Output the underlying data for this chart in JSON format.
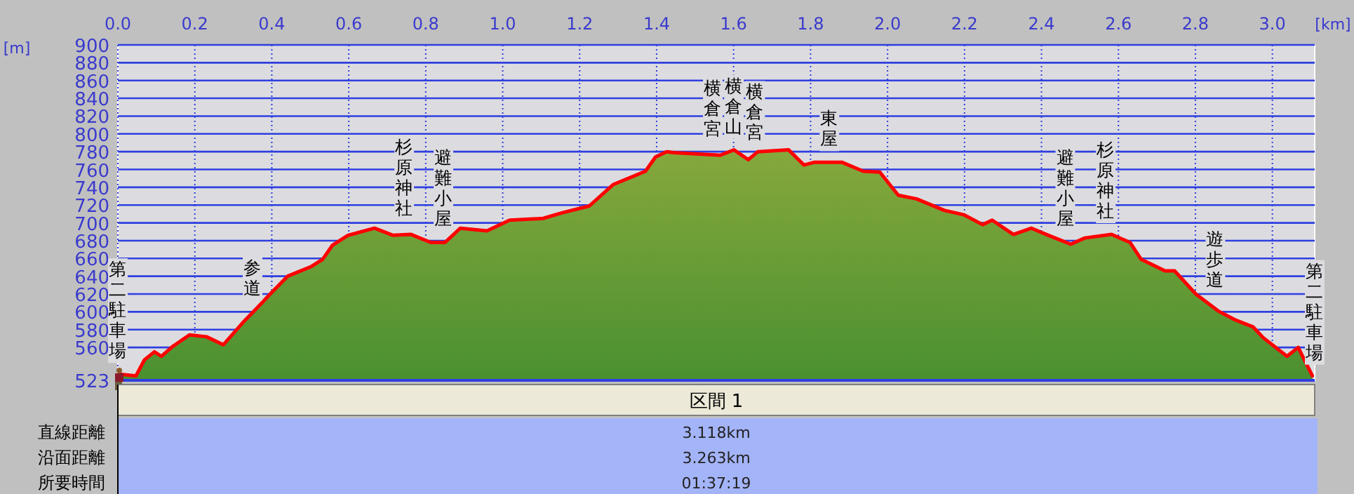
{
  "chart_data": [
    {
      "type": "area",
      "xlabel": "[km]",
      "ylabel": "[m]",
      "xlim": [
        0,
        3.11
      ],
      "ylim": [
        523,
        900
      ],
      "xticks": [
        {
          "value": 0,
          "label": "0.0"
        },
        {
          "value": 0.2,
          "label": "0.2"
        },
        {
          "value": 0.4,
          "label": "0.4"
        },
        {
          "value": 0.6,
          "label": "0.6"
        },
        {
          "value": 0.8,
          "label": "0.8"
        },
        {
          "value": 1,
          "label": "1.0"
        },
        {
          "value": 1.2,
          "label": "1.2"
        },
        {
          "value": 1.4,
          "label": "1.4"
        },
        {
          "value": 1.6,
          "label": "1.6"
        },
        {
          "value": 1.8,
          "label": "1.8"
        },
        {
          "value": 2,
          "label": "2.0"
        },
        {
          "value": 2.2,
          "label": "2.2"
        },
        {
          "value": 2.4,
          "label": "2.4"
        },
        {
          "value": 2.6,
          "label": "2.6"
        },
        {
          "value": 2.8,
          "label": "2.8"
        },
        {
          "value": 3,
          "label": "3.0"
        }
      ],
      "yticks": [
        523,
        560,
        580,
        600,
        620,
        640,
        660,
        680,
        700,
        720,
        740,
        760,
        780,
        800,
        820,
        840,
        860,
        880,
        900
      ],
      "grid": true,
      "series": [
        {
          "color": "#ff0000",
          "x": [
            0.004,
            0.047,
            0.069,
            0.095,
            0.113,
            0.142,
            0.186,
            0.23,
            0.274,
            0.325,
            0.361,
            0.398,
            0.441,
            0.503,
            0.532,
            0.558,
            0.598,
            0.667,
            0.715,
            0.762,
            0.813,
            0.85,
            0.89,
            0.959,
            1.018,
            1.105,
            1.152,
            1.225,
            1.287,
            1.371,
            1.397,
            1.426,
            1.444,
            1.565,
            1.601,
            1.638,
            1.663,
            1.743,
            1.783,
            1.809,
            1.882,
            1.937,
            1.98,
            2.028,
            2.075,
            2.148,
            2.199,
            2.247,
            2.272,
            2.327,
            2.374,
            2.418,
            2.476,
            2.513,
            2.582,
            2.63,
            2.659,
            2.721,
            2.746,
            2.801,
            2.859,
            2.903,
            2.95,
            2.976,
            3.038,
            3.067,
            3.104
          ],
          "values": [
            530,
            528,
            546,
            555,
            550,
            561,
            574,
            572,
            563,
            588,
            604,
            621,
            640,
            651,
            659,
            675,
            686,
            694,
            686,
            687,
            678,
            678,
            694,
            691,
            703,
            705,
            711,
            719,
            743,
            758,
            774,
            780,
            779,
            776,
            782,
            771,
            780,
            782,
            765,
            768,
            768,
            758,
            757,
            731,
            727,
            714,
            709,
            698,
            703,
            687,
            694,
            686,
            676,
            683,
            687,
            678,
            659,
            646,
            646,
            620,
            601,
            591,
            583,
            571,
            550,
            560,
            528
          ]
        }
      ],
      "annotations": [
        {
          "text": "第二駐車場",
          "x": 0,
          "y": 530
        },
        {
          "text": "参道",
          "x": 0.35,
          "y": 600
        },
        {
          "text": "杉原神社",
          "x": 0.744,
          "y": 690
        },
        {
          "text": "避難小屋",
          "x": 0.846,
          "y": 678
        },
        {
          "text": "横倉宮",
          "x": 1.546,
          "y": 779
        },
        {
          "text": "横倉山",
          "x": 1.601,
          "y": 782
        },
        {
          "text": "横倉宮",
          "x": 1.656,
          "y": 775
        },
        {
          "text": "東屋",
          "x": 1.849,
          "y": 768
        },
        {
          "text": "避難小屋",
          "x": 2.462,
          "y": 678
        },
        {
          "text": "杉原神社",
          "x": 2.567,
          "y": 687
        },
        {
          "text": "遊歩道",
          "x": 2.852,
          "y": 610
        },
        {
          "text": "第二駐車場",
          "x": 3.11,
          "y": 528
        }
      ]
    },
    {
      "type": "other",
      "title": "区間 1",
      "annotations": [
        "直線距離",
        "3.118km",
        "沿面距離",
        "3.263km",
        "所要時間",
        "01:37:19"
      ]
    }
  ]
}
